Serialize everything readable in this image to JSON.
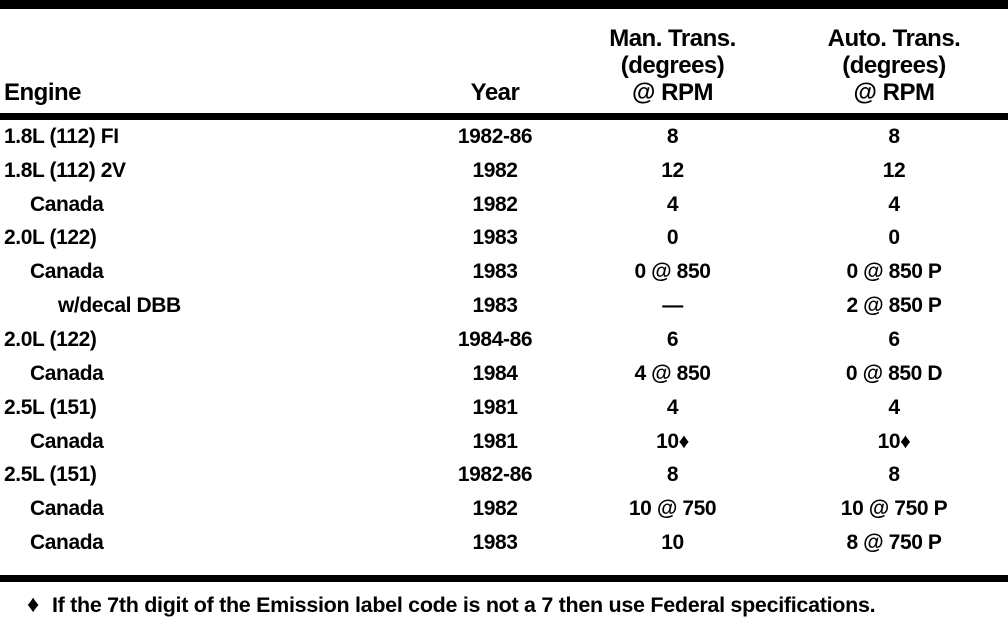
{
  "table": {
    "header": {
      "engine": "Engine",
      "year": "Year",
      "man_lines": [
        "Man. Trans.",
        "(degrees)",
        "@ RPM"
      ],
      "auto_lines": [
        "Auto. Trans.",
        "(degrees)",
        "@ RPM"
      ]
    },
    "rows": [
      {
        "engine": "1.8L (112) FI",
        "indent": 0,
        "year": "1982-86",
        "man": "8",
        "auto": "8"
      },
      {
        "engine": "1.8L (112) 2V",
        "indent": 0,
        "year": "1982",
        "man": "12",
        "auto": "12"
      },
      {
        "engine": "Canada",
        "indent": 1,
        "year": "1982",
        "man": "4",
        "auto": "4"
      },
      {
        "engine": "2.0L (122)",
        "indent": 0,
        "year": "1983",
        "man": "0",
        "auto": "0"
      },
      {
        "engine": "Canada",
        "indent": 1,
        "year": "1983",
        "man": "0 @ 850",
        "auto": "0 @ 850 P"
      },
      {
        "engine": "w/decal DBB",
        "indent": 2,
        "year": "1983",
        "man": "—",
        "auto": "2 @ 850 P"
      },
      {
        "engine": "2.0L (122)",
        "indent": 0,
        "year": "1984-86",
        "man": "6",
        "auto": "6"
      },
      {
        "engine": "Canada",
        "indent": 1,
        "year": "1984",
        "man": "4 @ 850",
        "auto": "0 @ 850 D"
      },
      {
        "engine": "2.5L (151)",
        "indent": 0,
        "year": "1981",
        "man": "4",
        "auto": "4"
      },
      {
        "engine": "Canada",
        "indent": 1,
        "year": "1981",
        "man": "10♦",
        "auto": "10♦"
      },
      {
        "engine": "2.5L (151)",
        "indent": 0,
        "year": "1982-86",
        "man": "8",
        "auto": "8"
      },
      {
        "engine": "Canada",
        "indent": 1,
        "year": "1982",
        "man": "10 @ 750",
        "auto": "10 @ 750 P"
      },
      {
        "engine": "Canada",
        "indent": 1,
        "year": "1983",
        "man": "10",
        "auto": "8 @ 750 P"
      }
    ]
  },
  "footnote": {
    "symbol": "♦",
    "text": "If the 7th digit of the Emission label code is not a 7 then use Federal specifications."
  },
  "colors": {
    "ink": "#000000",
    "paper": "#ffffff"
  }
}
